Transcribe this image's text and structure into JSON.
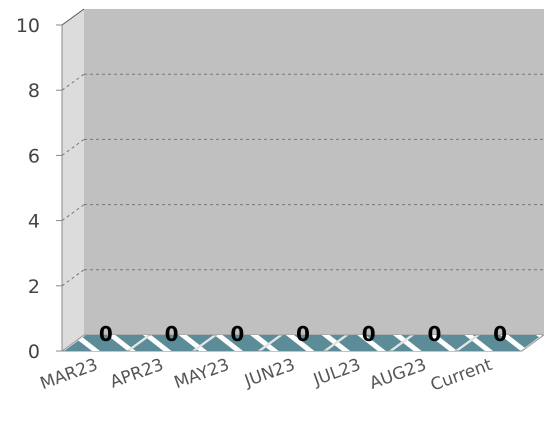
{
  "chart_data": {
    "type": "bar",
    "categories": [
      "MAR23",
      "APR23",
      "MAY23",
      "JUN23",
      "JUL23",
      "AUG23",
      "Current"
    ],
    "values": [
      0,
      0,
      0,
      0,
      0,
      0,
      0
    ],
    "data_labels": [
      "0",
      "0",
      "0",
      "0",
      "0",
      "0",
      "0"
    ],
    "yticks": [
      "0",
      "2",
      "4",
      "6",
      "8",
      "10"
    ],
    "ylim": [
      0,
      10
    ],
    "grid": true,
    "three_d": true,
    "colors": {
      "back_wall": "#c0c0c0",
      "side_wall": "#dcdcdc",
      "bar": "#5b8c98",
      "bar_stripe": "#ffffff",
      "grid": "#777777"
    }
  }
}
